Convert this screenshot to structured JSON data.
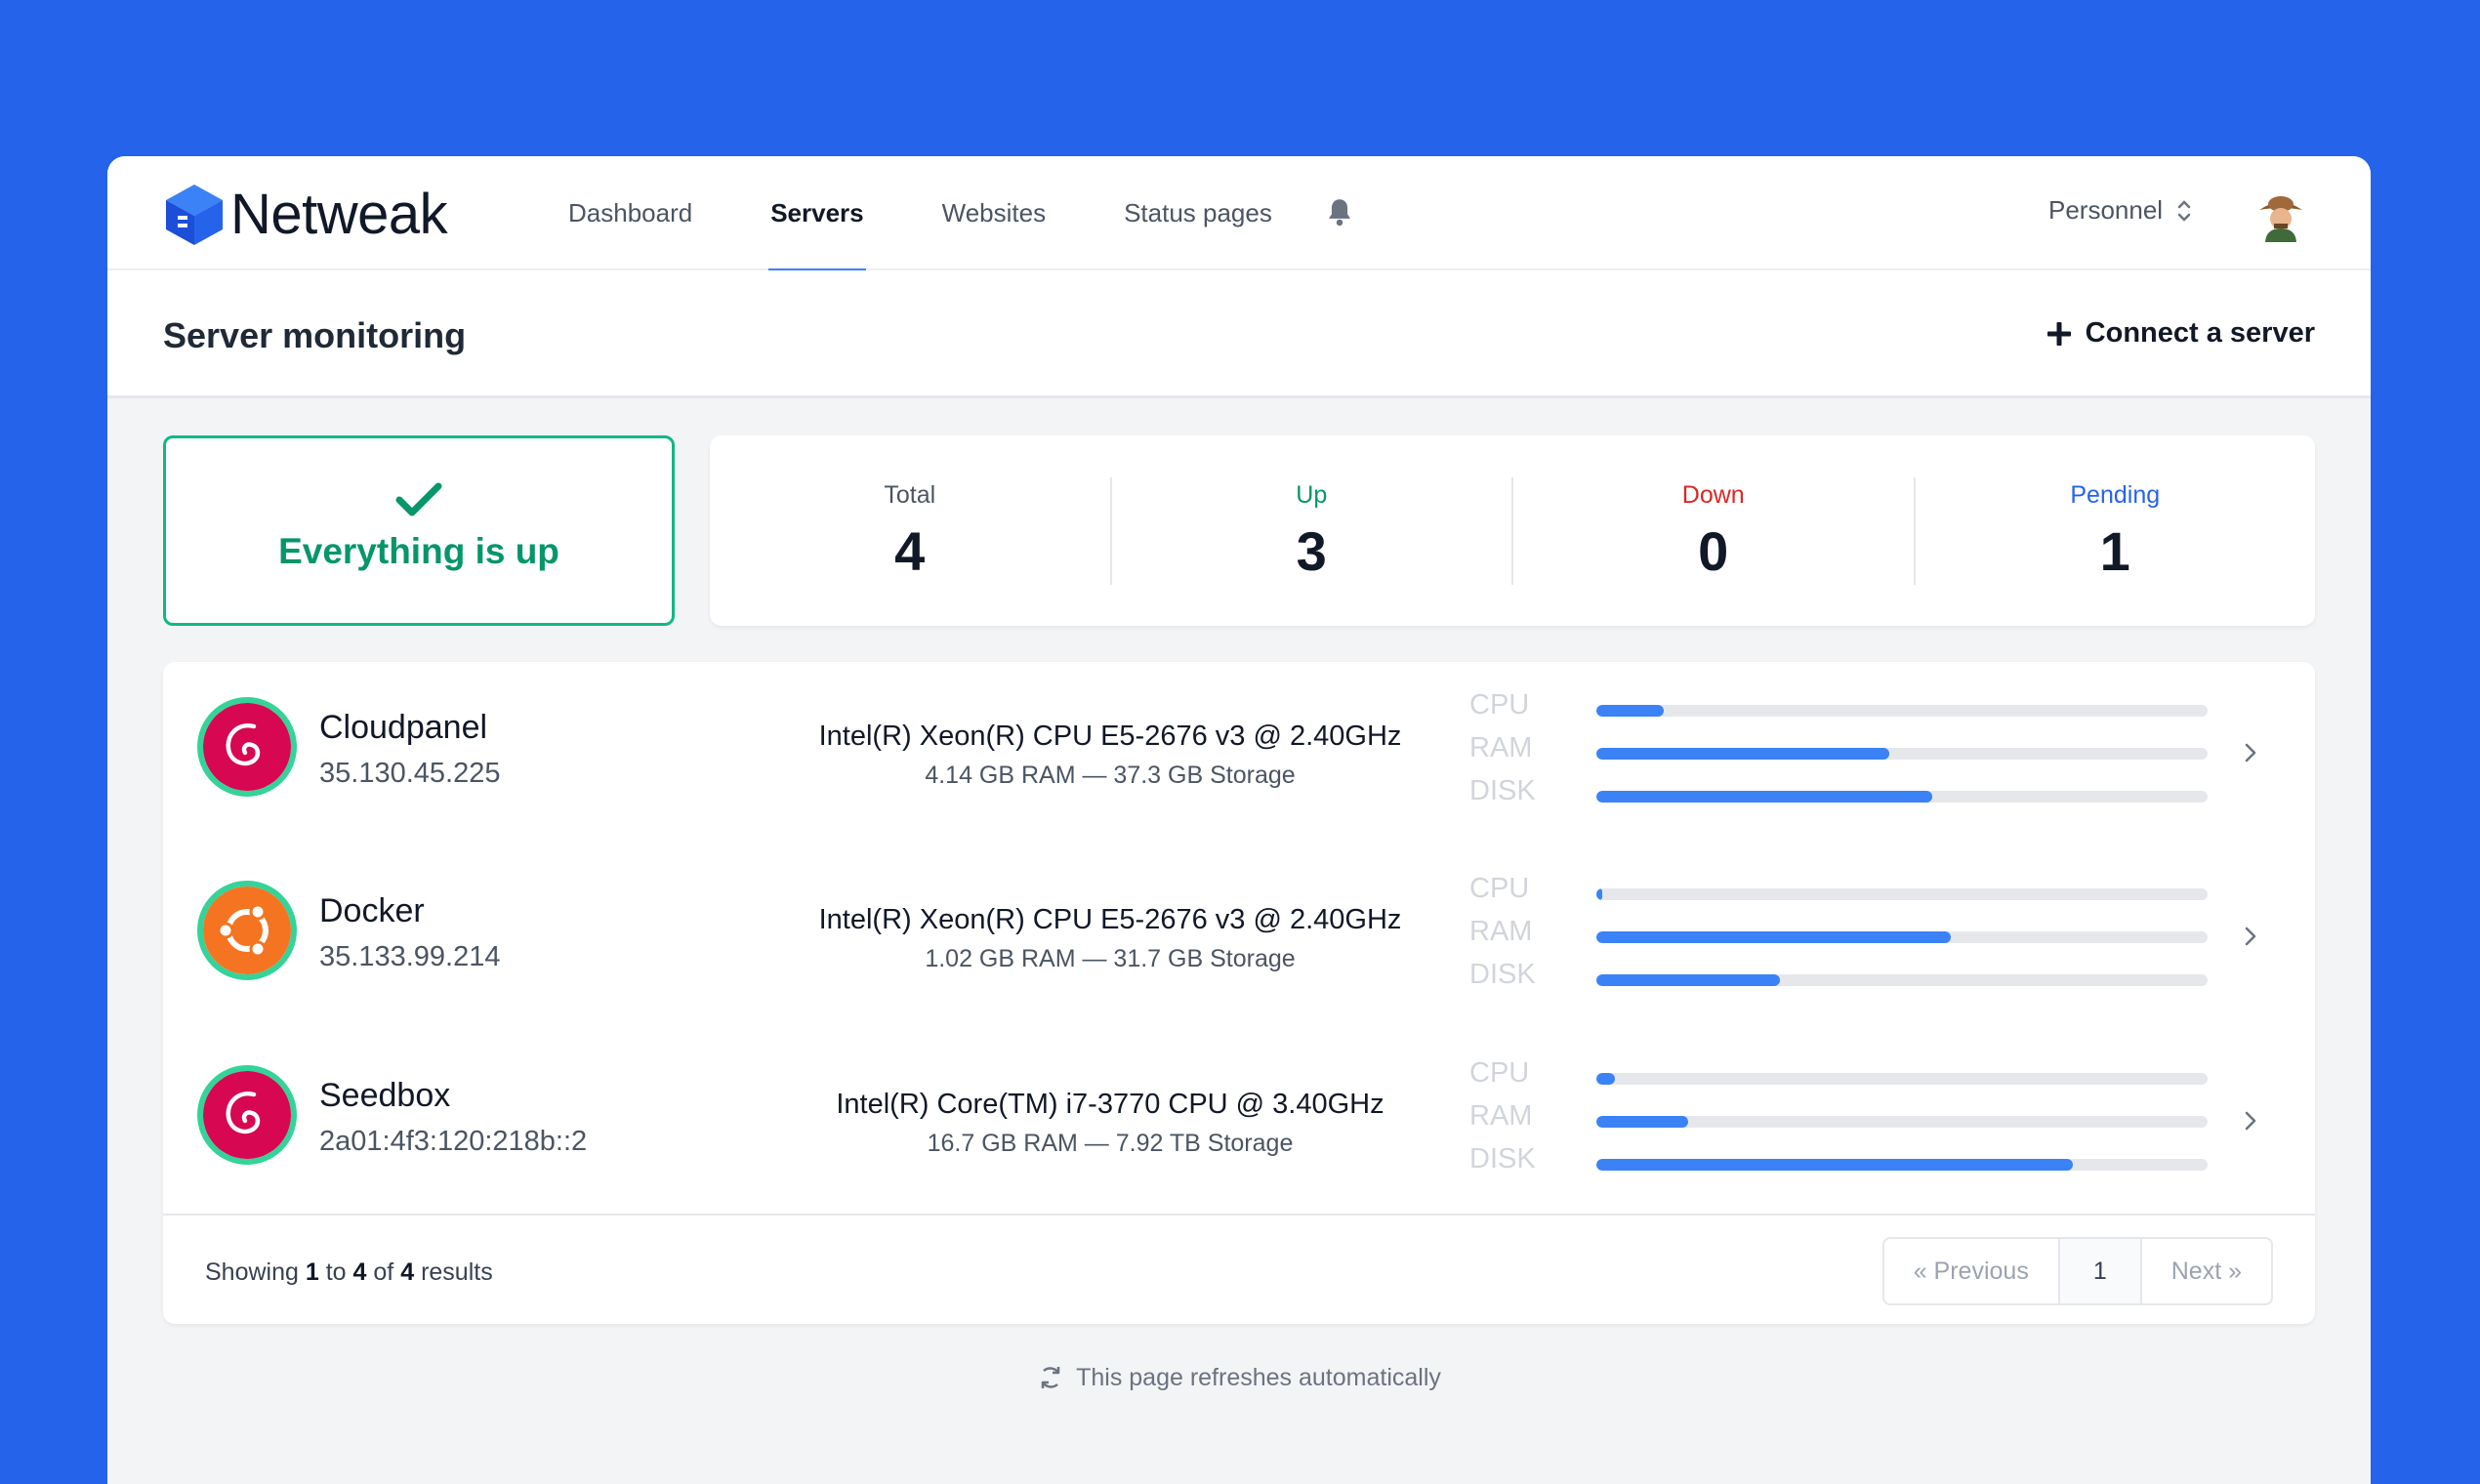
{
  "brand": {
    "name": "Netweak"
  },
  "nav": {
    "items": [
      {
        "label": "Dashboard",
        "active": false
      },
      {
        "label": "Servers",
        "active": true
      },
      {
        "label": "Websites",
        "active": false
      },
      {
        "label": "Status pages",
        "active": false
      }
    ],
    "bell_icon": "bell-icon",
    "team": "Personnel"
  },
  "header": {
    "title": "Server monitoring",
    "connect_label": "Connect a server"
  },
  "status": {
    "text": "Everything is up",
    "icon": "check-icon",
    "color": "#059669"
  },
  "stats": [
    {
      "label": "Total",
      "value": "4",
      "color": "#4b5563"
    },
    {
      "label": "Up",
      "value": "3",
      "color": "#059669"
    },
    {
      "label": "Down",
      "value": "0",
      "color": "#dc2626"
    },
    {
      "label": "Pending",
      "value": "1",
      "color": "#2563eb"
    }
  ],
  "metric_labels": [
    "CPU",
    "RAM",
    "DISK"
  ],
  "servers": [
    {
      "name": "Cloudpanel",
      "ip": "35.130.45.225",
      "os": "debian",
      "cpu": "Intel(R) Xeon(R) CPU E5-2676 v3 @ 2.40GHz",
      "spec": "4.14 GB RAM — 37.3 GB Storage",
      "usage": {
        "cpu": 0.11,
        "ram": 0.48,
        "disk": 0.55
      }
    },
    {
      "name": "Docker",
      "ip": "35.133.99.214",
      "os": "ubuntu",
      "cpu": "Intel(R) Xeon(R) CPU E5-2676 v3 @ 2.40GHz",
      "spec": "1.02 GB RAM — 31.7 GB Storage",
      "usage": {
        "cpu": 0.01,
        "ram": 0.58,
        "disk": 0.3
      }
    },
    {
      "name": "Seedbox",
      "ip": "2a01:4f3:120:218b::2",
      "os": "debian",
      "cpu": "Intel(R) Core(TM) i7-3770 CPU @ 3.40GHz",
      "spec": "16.7 GB RAM — 7.92 TB Storage",
      "usage": {
        "cpu": 0.03,
        "ram": 0.15,
        "disk": 0.78
      }
    }
  ],
  "footer": {
    "prefix": "Showing",
    "from": "1",
    "to_word": "to",
    "to": "4",
    "of_word": "of",
    "total": "4",
    "suffix": "results",
    "prev": "« Previous",
    "page": "1",
    "next": "Next »"
  },
  "refresh_text": "This page refreshes automatically"
}
